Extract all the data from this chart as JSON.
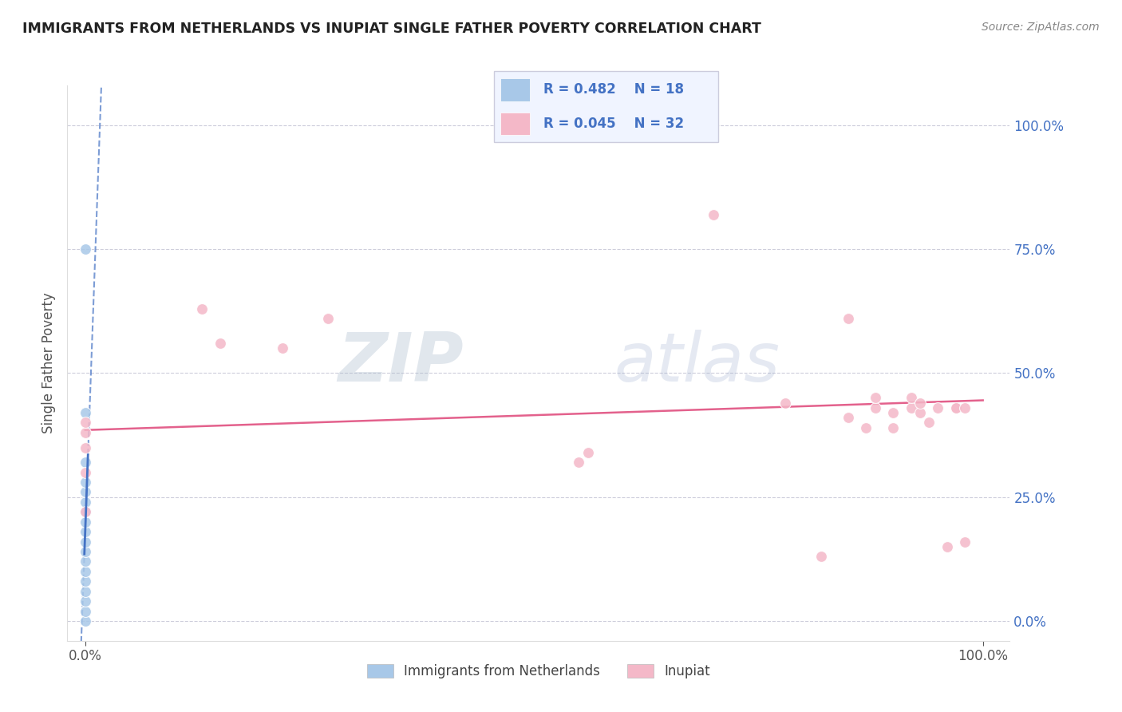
{
  "title": "IMMIGRANTS FROM NETHERLANDS VS INUPIAT SINGLE FATHER POVERTY CORRELATION CHART",
  "source": "Source: ZipAtlas.com",
  "ylabel": "Single Father Poverty",
  "watermark_zip": "ZIP",
  "watermark_atlas": "atlas",
  "legend1_R": "0.482",
  "legend1_N": "18",
  "legend2_R": "0.045",
  "legend2_N": "32",
  "blue_color": "#a8c8e8",
  "pink_color": "#f4b8c8",
  "blue_line_color": "#4472c4",
  "pink_line_color": "#e05080",
  "title_color": "#222222",
  "ytick_color": "#4472c4",
  "grid_color": "#c8c8d8",
  "background_color": "#ffffff",
  "blue_points_x": [
    0.0,
    0.0,
    0.0,
    0.0,
    0.0,
    0.0,
    0.0,
    0.0,
    0.0,
    0.0,
    0.0,
    0.0,
    0.0,
    0.0,
    0.0,
    0.0,
    0.0,
    0.0
  ],
  "blue_points_y": [
    0.0,
    0.02,
    0.04,
    0.06,
    0.08,
    0.1,
    0.12,
    0.14,
    0.16,
    0.18,
    0.2,
    0.22,
    0.24,
    0.26,
    0.28,
    0.32,
    0.42,
    0.75
  ],
  "pink_points_x": [
    0.0,
    0.0,
    0.0,
    0.0,
    0.0,
    0.13,
    0.15,
    0.22,
    0.27,
    0.55,
    0.56,
    0.7,
    0.78,
    0.82,
    0.85,
    0.87,
    0.88,
    0.88,
    0.9,
    0.9,
    0.92,
    0.92,
    0.93,
    0.93,
    0.94,
    0.95,
    0.96,
    0.97,
    0.97,
    0.98,
    0.98,
    0.85
  ],
  "pink_points_y": [
    0.22,
    0.3,
    0.35,
    0.38,
    0.4,
    0.63,
    0.56,
    0.55,
    0.61,
    0.32,
    0.34,
    0.82,
    0.44,
    0.13,
    0.41,
    0.39,
    0.43,
    0.45,
    0.42,
    0.39,
    0.43,
    0.45,
    0.42,
    0.44,
    0.4,
    0.43,
    0.15,
    0.43,
    0.43,
    0.16,
    0.43,
    0.61
  ],
  "ylim_min": -0.04,
  "ylim_max": 1.08,
  "xlim_min": -0.02,
  "xlim_max": 1.03,
  "ytick_labels": [
    "0.0%",
    "25.0%",
    "50.0%",
    "75.0%",
    "100.0%"
  ],
  "ytick_values": [
    0.0,
    0.25,
    0.5,
    0.75,
    1.0
  ],
  "xtick_labels": [
    "0.0%",
    "100.0%"
  ],
  "xtick_values": [
    0.0,
    1.0
  ],
  "marker_size": 100,
  "blue_line_intercept": 0.185,
  "blue_line_slope": 50.0,
  "pink_line_intercept": 0.385,
  "pink_line_slope": 0.06
}
